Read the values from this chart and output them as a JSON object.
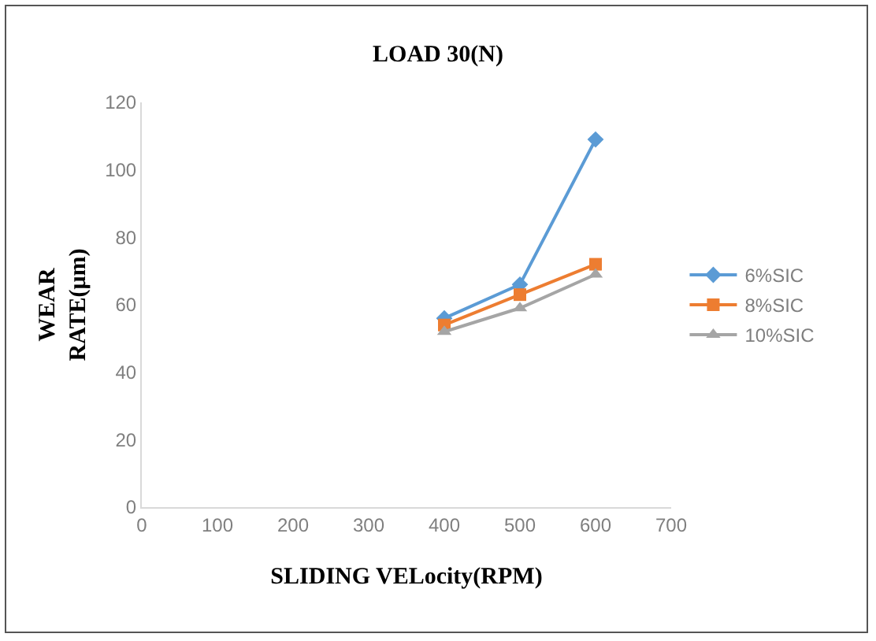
{
  "chart_data": {
    "type": "line",
    "title": "LOAD 30(N)",
    "xlabel": "SLIDING VELocity(RPM)",
    "ylabel": "WEAR\nRATE(μm)",
    "x": [
      400,
      500,
      600
    ],
    "series": [
      {
        "name": "6%SIC",
        "color": "#5b9bd5",
        "marker": "diamond",
        "values": [
          56,
          66,
          109
        ]
      },
      {
        "name": "8%SIC",
        "color": "#ed7d31",
        "marker": "square",
        "values": [
          54,
          63,
          72
        ]
      },
      {
        "name": "10%SIC",
        "color": "#a5a5a5",
        "marker": "triangle",
        "values": [
          52,
          59,
          69
        ]
      }
    ],
    "xlim": [
      0,
      700
    ],
    "xticks": [
      0,
      100,
      200,
      300,
      400,
      500,
      600,
      700
    ],
    "ylim": [
      0,
      120
    ],
    "yticks": [
      0,
      20,
      40,
      60,
      80,
      100,
      120
    ],
    "grid": false,
    "legend": "right",
    "line_style": "solid"
  }
}
